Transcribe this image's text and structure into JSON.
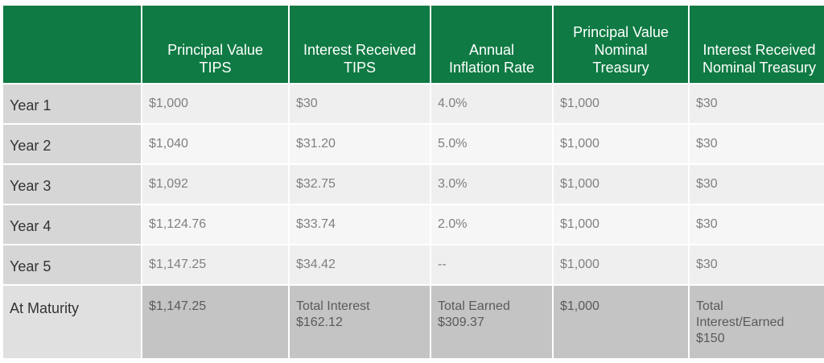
{
  "headers": [
    "",
    "Principal Value\nTIPS",
    "Interest Received\nTIPS",
    "Annual\nInflation Rate",
    "Principal Value\nNominal\nTreasury",
    "Interest Received\nNominal Treasury"
  ],
  "rows": [
    {
      "label": "Year 1",
      "cells": [
        "$1,000",
        "$30",
        "4.0%",
        "$1,000",
        "$30"
      ]
    },
    {
      "label": "Year 2",
      "cells": [
        "$1,040",
        "$31.20",
        "5.0%",
        "$1,000",
        "$30"
      ]
    },
    {
      "label": "Year 3",
      "cells": [
        "$1,092",
        "$32.75",
        "3.0%",
        "$1,000",
        "$30"
      ]
    },
    {
      "label": "Year 4",
      "cells": [
        "$1,124.76",
        "$33.74",
        "2.0%",
        "$1,000",
        "$30"
      ]
    },
    {
      "label": "Year 5",
      "cells": [
        "$1,147.25",
        "$34.42",
        "--",
        "$1,000",
        "$30"
      ]
    }
  ],
  "maturity": {
    "label": "At Maturity",
    "cells": [
      "$1,147.25",
      "Total Interest\n$162.12",
      "Total Earned\n$309.37",
      "$1,000",
      "Total\nInterest/Earned\n$150"
    ]
  },
  "colors": {
    "header_bg": "#0f7a43",
    "row_label_bg": "#d6d6d6",
    "cell_bg": "#efefef",
    "maturity_bg": "#c4c4c4"
  }
}
